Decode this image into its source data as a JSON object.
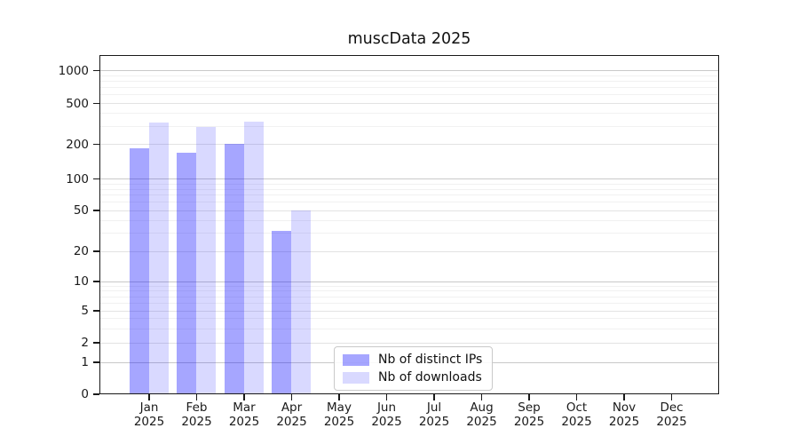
{
  "chart_data": {
    "type": "bar",
    "title": "muscData 2025",
    "categories": [
      "Jan",
      "Feb",
      "Mar",
      "Apr",
      "May",
      "Jun",
      "Jul",
      "Aug",
      "Sep",
      "Oct",
      "Nov",
      "Dec"
    ],
    "category_year": "2025",
    "series": [
      {
        "name": "Nb of distinct IPs",
        "color": "rgba(0,0,255,0.35)",
        "color_on_white": "#a6a6ff",
        "values": [
          185,
          170,
          205,
          32,
          null,
          null,
          null,
          null,
          null,
          null,
          null,
          null
        ]
      },
      {
        "name": "Nb of downloads",
        "color": "rgba(0,0,255,0.15)",
        "color_on_white": "#d9d9ff",
        "values": [
          325,
          295,
          335,
          50,
          null,
          null,
          null,
          null,
          null,
          null,
          null,
          null
        ]
      }
    ],
    "xlabel": "",
    "ylabel": "",
    "yscale": "symlog",
    "yticks": [
      0,
      1,
      2,
      5,
      10,
      20,
      50,
      100,
      200,
      500,
      1000
    ],
    "ylim": [
      0,
      1400
    ],
    "grid": true,
    "legend_position": "lower-center",
    "background": "#ffffff",
    "grid_color_decade": "#c9c9c9",
    "grid_color_major": "#e3e3e3",
    "grid_color_minor": "#f1f1f1"
  }
}
